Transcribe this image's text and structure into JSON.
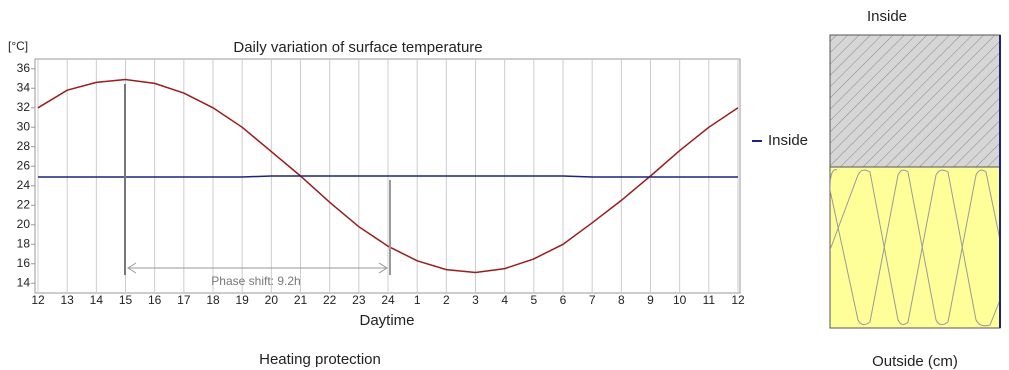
{
  "chart_data": {
    "type": "line",
    "title": "Daily variation of surface temperature",
    "y_label": "[°C]",
    "x_label": "Daytime",
    "caption": "Heating protection",
    "annotation": "Phase shift: 9.2h",
    "categories": [
      "12",
      "13",
      "14",
      "15",
      "16",
      "17",
      "18",
      "19",
      "20",
      "21",
      "22",
      "23",
      "24",
      "1",
      "2",
      "3",
      "4",
      "5",
      "6",
      "7",
      "8",
      "9",
      "10",
      "11",
      "12"
    ],
    "series": [
      {
        "color": "#9b1c1c",
        "values": [
          32,
          33.8,
          34.6,
          34.9,
          34.5,
          33.5,
          32,
          30,
          27.5,
          25,
          22.3,
          19.8,
          17.8,
          16.3,
          15.4,
          15.1,
          15.5,
          16.5,
          18,
          20.2,
          22.5,
          25,
          27.6,
          30,
          32
        ]
      },
      {
        "name": "Inside",
        "color": "#1a237e",
        "values": [
          24.9,
          24.9,
          24.9,
          24.9,
          24.9,
          24.9,
          24.9,
          24.9,
          25,
          25,
          25,
          25,
          25,
          25,
          25,
          25,
          25,
          25,
          25,
          24.9,
          24.9,
          24.9,
          24.9,
          24.9,
          24.9
        ]
      }
    ],
    "ylim": [
      13,
      37
    ],
    "yticks": [
      14,
      16,
      18,
      20,
      22,
      24,
      26,
      28,
      30,
      32,
      34,
      36
    ],
    "grid": true
  },
  "wall": {
    "top_label": "Inside",
    "bottom_label": "Outside (cm)"
  }
}
